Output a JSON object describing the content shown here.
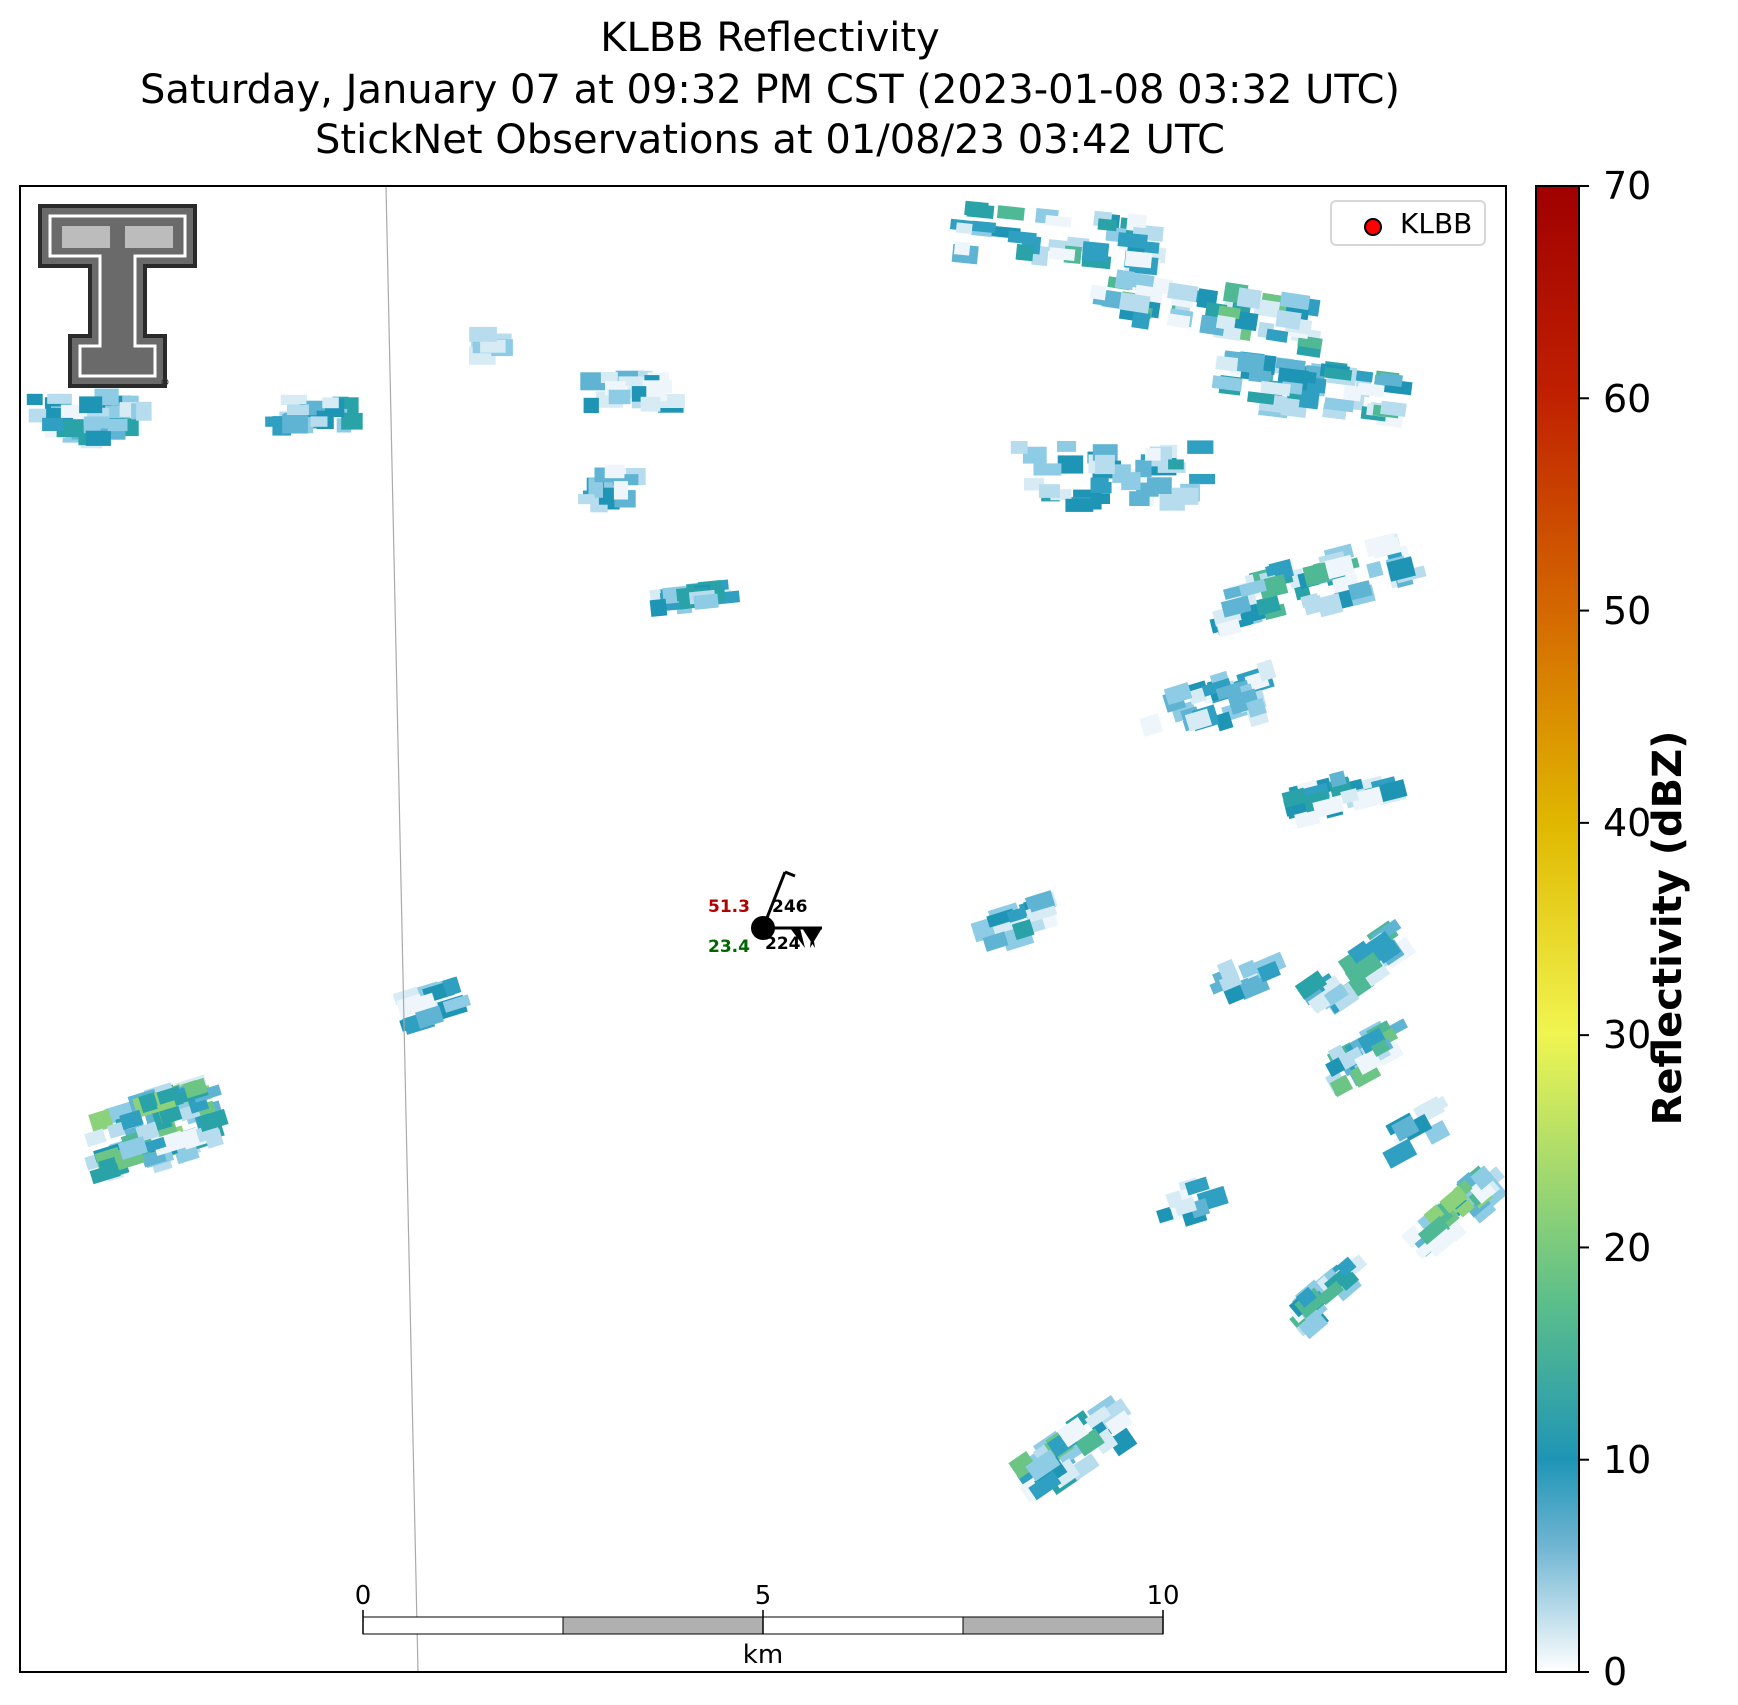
{
  "header": {
    "title_line1": "KLBB Reflectivity",
    "title_line2": "Saturday, January 07 at 09:32 PM CST (2023-01-08 03:32 UTC)",
    "title_line3": "StickNet Observations at 01/08/23 03:42 UTC"
  },
  "legend": {
    "label": "KLBB",
    "marker_color": "#ff0000"
  },
  "station": {
    "temperature": "51.3",
    "pressure_top": "246",
    "dewpoint": "23.4",
    "pressure_bottom": "224",
    "temperature_color": "#b30000",
    "dewpoint_color": "#006600"
  },
  "scale_bar": {
    "labels": [
      "0",
      "5",
      "10"
    ],
    "unit": "km"
  },
  "colorbar": {
    "label": "Reflectivity (dBZ)",
    "ticks": [
      "0",
      "10",
      "20",
      "30",
      "40",
      "50",
      "60",
      "70"
    ],
    "min": 0,
    "max": 70,
    "colors": [
      "#ffffff",
      "#1f95b6",
      "#75c97a",
      "#f0f550",
      "#e0a000",
      "#d05000",
      "#c01800",
      "#a00000"
    ]
  },
  "logo": {
    "name": "texas-tech-double-t"
  }
}
